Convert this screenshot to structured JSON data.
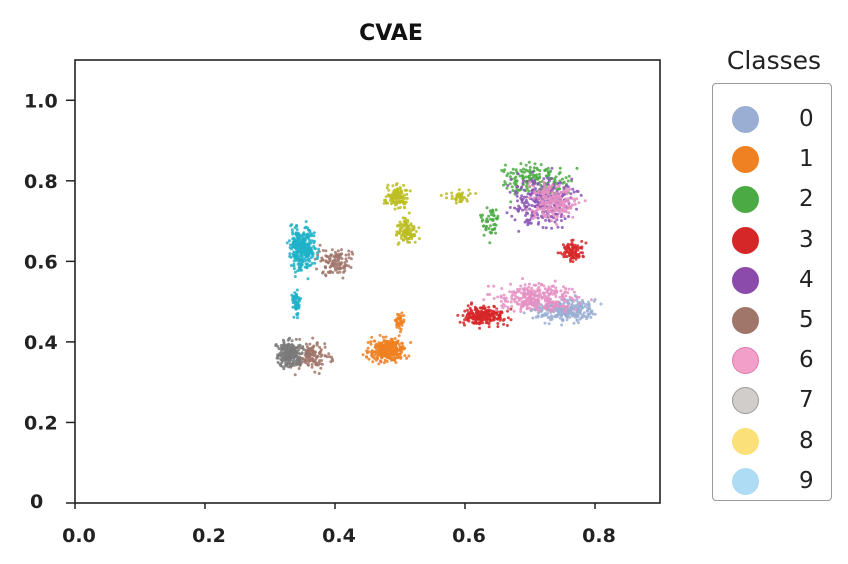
{
  "chart_data": {
    "type": "scatter",
    "title": "CVAE",
    "xlabel": "",
    "ylabel": "",
    "xlim": [
      0.0,
      0.9
    ],
    "ylim": [
      0.0,
      1.1
    ],
    "x_ticks": [
      {
        "value": 0.0,
        "label": "0.0"
      },
      {
        "value": 0.2,
        "label": "0.2"
      },
      {
        "value": 0.4,
        "label": "0.4"
      },
      {
        "value": 0.6,
        "label": "0.6"
      },
      {
        "value": 0.8,
        "label": "0.8"
      }
    ],
    "y_ticks": [
      {
        "value": 0.0,
        "label": "0"
      },
      {
        "value": 0.2,
        "label": "0.2"
      },
      {
        "value": 0.4,
        "label": "0.4"
      },
      {
        "value": 0.6,
        "label": "0.6"
      },
      {
        "value": 0.8,
        "label": "0.8"
      },
      {
        "value": 1.0,
        "label": "1.0"
      }
    ],
    "grid": false,
    "legend": {
      "title": "Classes",
      "position": "right"
    },
    "series": [
      {
        "name": "0",
        "color": "#9aaed4",
        "regions": [
          {
            "x": [
              0.68,
              0.82
            ],
            "y": [
              0.44,
              0.52
            ],
            "count": 260
          }
        ]
      },
      {
        "name": "1",
        "color": "#ef8122",
        "regions": [
          {
            "x": [
              0.44,
              0.52
            ],
            "y": [
              0.34,
              0.42
            ],
            "count": 320
          },
          {
            "x": [
              0.49,
              0.51
            ],
            "y": [
              0.42,
              0.48
            ],
            "count": 40
          }
        ]
      },
      {
        "name": "2",
        "color": "#4caa44",
        "regions": [
          {
            "x": [
              0.63,
              0.79
            ],
            "y": [
              0.74,
              0.86
            ],
            "count": 180
          },
          {
            "x": [
              0.62,
              0.66
            ],
            "y": [
              0.64,
              0.76
            ],
            "count": 50
          }
        ]
      },
      {
        "name": "3",
        "color": "#d62728",
        "regions": [
          {
            "x": [
              0.58,
              0.68
            ],
            "y": [
              0.43,
              0.5
            ],
            "count": 220
          },
          {
            "x": [
              0.74,
              0.79
            ],
            "y": [
              0.59,
              0.66
            ],
            "count": 90
          }
        ]
      },
      {
        "name": "4",
        "color": "#8b55b5",
        "regions": [
          {
            "x": [
              0.65,
              0.79
            ],
            "y": [
              0.66,
              0.84
            ],
            "count": 280
          }
        ]
      },
      {
        "name": "5",
        "color": "#a0766b",
        "regions": [
          {
            "x": [
              0.36,
              0.44
            ],
            "y": [
              0.55,
              0.65
            ],
            "count": 110
          },
          {
            "x": [
              0.32,
              0.41
            ],
            "y": [
              0.31,
              0.42
            ],
            "count": 130
          }
        ]
      },
      {
        "name": "6",
        "color": "#e590c3",
        "regions": [
          {
            "x": [
              0.62,
              0.8
            ],
            "y": [
              0.46,
              0.56
            ],
            "count": 280
          },
          {
            "x": [
              0.68,
              0.79
            ],
            "y": [
              0.68,
              0.82
            ],
            "count": 200
          }
        ]
      },
      {
        "name": "7",
        "color": "#7a7a7a",
        "regions": [
          {
            "x": [
              0.3,
              0.36
            ],
            "y": [
              0.32,
              0.42
            ],
            "count": 220
          }
        ]
      },
      {
        "name": "8",
        "color": "#bcbd22",
        "regions": [
          {
            "x": [
              0.47,
              0.52
            ],
            "y": [
              0.72,
              0.8
            ],
            "count": 110
          },
          {
            "x": [
              0.49,
              0.53
            ],
            "y": [
              0.63,
              0.72
            ],
            "count": 110
          },
          {
            "x": [
              0.56,
              0.62
            ],
            "y": [
              0.74,
              0.78
            ],
            "count": 40
          }
        ]
      },
      {
        "name": "9",
        "color": "#1fb1c8",
        "regions": [
          {
            "x": [
              0.32,
              0.38
            ],
            "y": [
              0.55,
              0.72
            ],
            "count": 300
          },
          {
            "x": [
              0.33,
              0.35
            ],
            "y": [
              0.45,
              0.54
            ],
            "count": 50
          }
        ]
      }
    ]
  },
  "legend_swatches": [
    {
      "name": "0",
      "fill": "#9aaed4",
      "stroke": "#9aaed4"
    },
    {
      "name": "1",
      "fill": "#ef8122",
      "stroke": "#ef8122"
    },
    {
      "name": "2",
      "fill": "#4caa44",
      "stroke": "#4caa44"
    },
    {
      "name": "3",
      "fill": "#d62728",
      "stroke": "#d62728"
    },
    {
      "name": "4",
      "fill": "#8b4bab",
      "stroke": "#8b4bab"
    },
    {
      "name": "5",
      "fill": "#a0766b",
      "stroke": "#a0766b"
    },
    {
      "name": "6",
      "fill": "#f2a0c9",
      "stroke": "#e07aae"
    },
    {
      "name": "7",
      "fill": "#d1cdcb",
      "stroke": "#9c9a99"
    },
    {
      "name": "8",
      "fill": "#fbe07a",
      "stroke": "#fbe07a"
    },
    {
      "name": "9",
      "fill": "#aedcf4",
      "stroke": "#aedcf4"
    }
  ]
}
